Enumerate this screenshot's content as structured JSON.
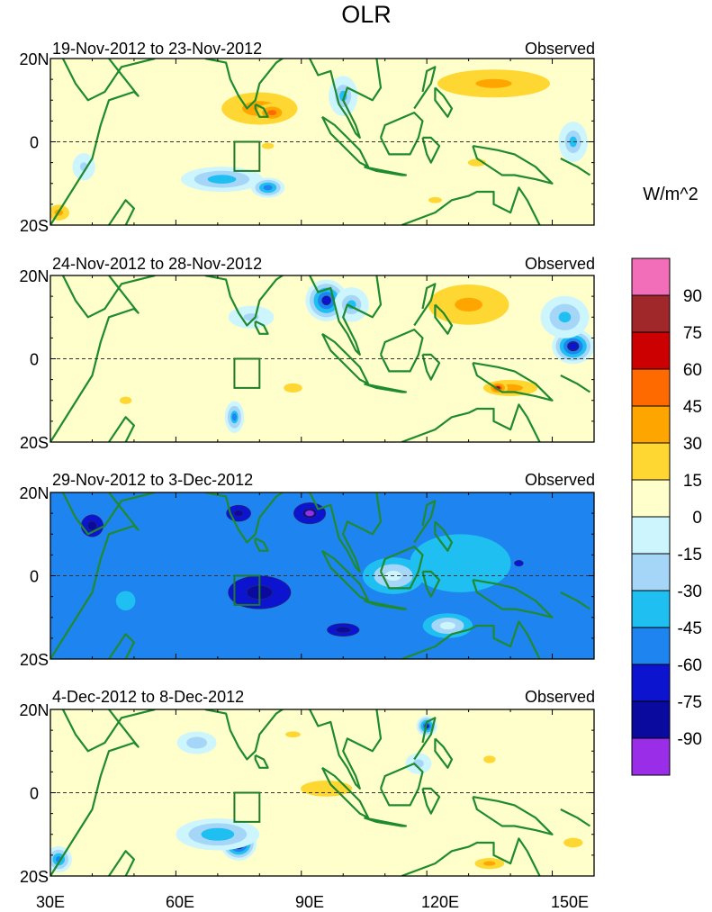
{
  "title": "OLR",
  "units_label": "W/m^2",
  "colorbar": {
    "labels": [
      "90",
      "75",
      "60",
      "45",
      "30",
      "15",
      "0",
      "-15",
      "-30",
      "-45",
      "-60",
      "-75",
      "-90"
    ],
    "colors": [
      "#f26eb8",
      "#a0282a",
      "#cc0000",
      "#ff6a00",
      "#ffa500",
      "#ffd733",
      "#ffffcc",
      "#ccf5fd",
      "#a5d6f8",
      "#1fbff2",
      "#1e84f0",
      "#0d14cf",
      "#0a0a9e",
      "#9a2ee8"
    ]
  },
  "axes": {
    "y_labels": [
      "20N",
      "0",
      "20S"
    ],
    "x_labels": [
      "30E",
      "60E",
      "90E",
      "120E",
      "150E"
    ]
  },
  "chart_data": {
    "type": "heatmap",
    "title": "OLR",
    "xlabel": "",
    "ylabel": "",
    "xlim": [
      30,
      160
    ],
    "ylim": [
      -20,
      20
    ],
    "x_ticks": [
      30,
      60,
      90,
      120,
      150
    ],
    "y_ticks": [
      20,
      0,
      -20
    ],
    "levels": [
      -90,
      -75,
      -60,
      -45,
      -30,
      -15,
      0,
      15,
      30,
      45,
      60,
      75,
      90
    ],
    "units": "W/m^2",
    "box_region": {
      "lon": [
        74,
        80
      ],
      "lat": [
        -7,
        0
      ]
    },
    "panels": [
      {
        "period": "19-Nov-2012 to 23-Nov-2012",
        "source": "Observed",
        "background": 5,
        "anomalies": [
          {
            "lon": 80,
            "lat": 8,
            "value": 40,
            "rx": 14,
            "ry": 6
          },
          {
            "lon": 83,
            "lat": 7,
            "value": 52,
            "rx": 5,
            "ry": 3
          },
          {
            "lon": 82,
            "lat": -1,
            "value": 20,
            "rx": 8,
            "ry": 4
          },
          {
            "lon": 136,
            "lat": 14,
            "value": 33,
            "rx": 24,
            "ry": 6
          },
          {
            "lon": 132,
            "lat": -5,
            "value": 16,
            "rx": 12,
            "ry": 5
          },
          {
            "lon": 122,
            "lat": -14,
            "value": 18,
            "rx": 9,
            "ry": 4
          },
          {
            "lon": 100,
            "lat": 11,
            "value": -35,
            "rx": 5,
            "ry": 7
          },
          {
            "lon": 71,
            "lat": -9,
            "value": -45,
            "rx": 13,
            "ry": 4
          },
          {
            "lon": 82,
            "lat": -11,
            "value": -58,
            "rx": 5,
            "ry": 3
          },
          {
            "lon": 155,
            "lat": 0,
            "value": -35,
            "rx": 5,
            "ry": 7
          },
          {
            "lon": 38,
            "lat": -6,
            "value": -22,
            "rx": 5,
            "ry": 6
          },
          {
            "lon": 32,
            "lat": -17,
            "value": 38,
            "rx": 4,
            "ry": 3
          }
        ]
      },
      {
        "period": "24-Nov-2012 to 28-Nov-2012",
        "source": "Observed",
        "background": 5,
        "anomalies": [
          {
            "lon": 96,
            "lat": 14,
            "value": -70,
            "rx": 6,
            "ry": 6
          },
          {
            "lon": 102,
            "lat": 13,
            "value": -35,
            "rx": 6,
            "ry": 6
          },
          {
            "lon": 155,
            "lat": 3,
            "value": -75,
            "rx": 6,
            "ry": 5
          },
          {
            "lon": 153,
            "lat": 10,
            "value": -40,
            "rx": 8,
            "ry": 7
          },
          {
            "lon": 130,
            "lat": 13,
            "value": 36,
            "rx": 16,
            "ry": 8
          },
          {
            "lon": 140,
            "lat": -7,
            "value": 40,
            "rx": 10,
            "ry": 3
          },
          {
            "lon": 137,
            "lat": -7,
            "value": 62,
            "rx": 3,
            "ry": 2
          },
          {
            "lon": 88,
            "lat": -7,
            "value": 22,
            "rx": 8,
            "ry": 4
          },
          {
            "lon": 48,
            "lat": -10,
            "value": 18,
            "rx": 8,
            "ry": 5
          },
          {
            "lon": 74,
            "lat": -14,
            "value": -48,
            "rx": 3,
            "ry": 5
          },
          {
            "lon": 78,
            "lat": 10,
            "value": -22,
            "rx": 10,
            "ry": 5
          }
        ]
      },
      {
        "period": "29-Nov-2012 to 3-Dec-2012",
        "source": "Observed",
        "background": -58,
        "anomalies": [
          {
            "lon": 80,
            "lat": -4,
            "value": -92,
            "rx": 10,
            "ry": 6
          },
          {
            "lon": 80,
            "lat": -4,
            "value": -80,
            "rx": 17,
            "ry": 9
          },
          {
            "lon": 92,
            "lat": 15,
            "value": -92,
            "rx": 6,
            "ry": 4
          },
          {
            "lon": 75,
            "lat": 15,
            "value": -82,
            "rx": 6,
            "ry": 4
          },
          {
            "lon": 100,
            "lat": -13,
            "value": -78,
            "rx": 10,
            "ry": 4
          },
          {
            "lon": 40,
            "lat": 12,
            "value": -80,
            "rx": 6,
            "ry": 6
          },
          {
            "lon": 128,
            "lat": 3,
            "value": -35,
            "rx": 26,
            "ry": 15
          },
          {
            "lon": 112,
            "lat": 0,
            "value": -12,
            "rx": 10,
            "ry": 6
          },
          {
            "lon": 125,
            "lat": -12,
            "value": -10,
            "rx": 8,
            "ry": 4
          },
          {
            "lon": 48,
            "lat": -6,
            "value": -35,
            "rx": 5,
            "ry": 5
          },
          {
            "lon": 142,
            "lat": 3,
            "value": -70,
            "rx": 6,
            "ry": 4
          }
        ]
      },
      {
        "period": "4-Dec-2012 to 8-Dec-2012",
        "source": "Observed",
        "background": 8,
        "anomalies": [
          {
            "lon": 75,
            "lat": -12,
            "value": -80,
            "rx": 5,
            "ry": 5
          },
          {
            "lon": 70,
            "lat": -10,
            "value": -45,
            "rx": 13,
            "ry": 5
          },
          {
            "lon": 96,
            "lat": 1,
            "value": 28,
            "rx": 16,
            "ry": 5
          },
          {
            "lon": 88,
            "lat": 14,
            "value": 22,
            "rx": 10,
            "ry": 4
          },
          {
            "lon": 135,
            "lat": 8,
            "value": 22,
            "rx": 8,
            "ry": 5
          },
          {
            "lon": 120,
            "lat": 16,
            "value": -65,
            "rx": 3,
            "ry": 3
          },
          {
            "lon": 65,
            "lat": 12,
            "value": -30,
            "rx": 7,
            "ry": 4
          },
          {
            "lon": 118,
            "lat": 7,
            "value": -25,
            "rx": 5,
            "ry": 4
          },
          {
            "lon": 135,
            "lat": -17,
            "value": 30,
            "rx": 8,
            "ry": 3
          },
          {
            "lon": 155,
            "lat": -12,
            "value": 28,
            "rx": 6,
            "ry": 3
          },
          {
            "lon": 32,
            "lat": -16,
            "value": -50,
            "rx": 4,
            "ry": 4
          },
          {
            "lon": 58,
            "lat": -14,
            "value": 10,
            "rx": 6,
            "ry": 4
          }
        ]
      }
    ]
  }
}
